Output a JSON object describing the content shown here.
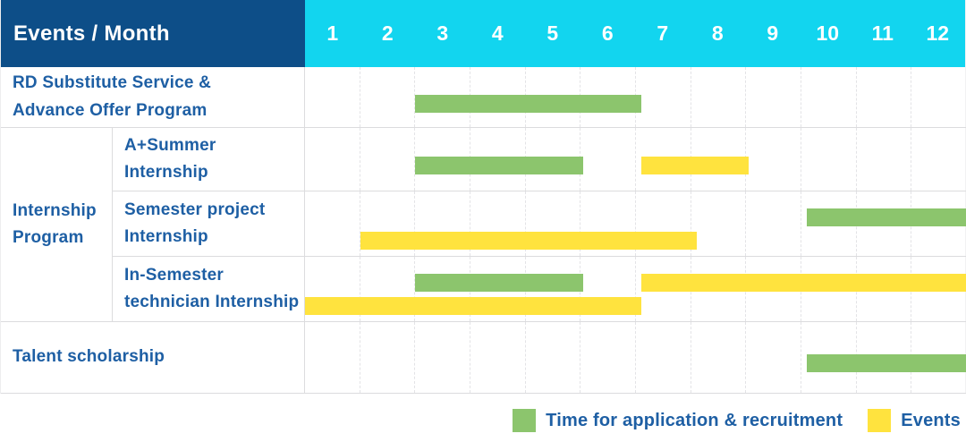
{
  "header": {
    "title": "Events / Month",
    "months": [
      "1",
      "2",
      "3",
      "4",
      "5",
      "6",
      "7",
      "8",
      "9",
      "10",
      "11",
      "12"
    ]
  },
  "rows": {
    "rd": {
      "label": "RD Substitute Service &\nAdvance Offer Program"
    },
    "group": {
      "label": "Internship\nProgram"
    },
    "a_summer": {
      "label": "A+Summer\nInternship"
    },
    "semester": {
      "label": "Semester project\nInternship"
    },
    "in_semester": {
      "label": "In-Semester\ntechnician Internship"
    },
    "talent": {
      "label": "Talent scholarship"
    }
  },
  "legend": {
    "recruitment": {
      "label": "Time for application & recruitment"
    },
    "events": {
      "label": "Events"
    }
  },
  "colors": {
    "header_bg": "#0d4e88",
    "months_bg": "#12d5ef",
    "bar_green": "#8cc56d",
    "bar_yellow": "#ffe33e",
    "label_text": "#1e5fa4",
    "header_text": "#ffffff",
    "grid_line": "#e3e3e6",
    "row_line": "#dcdcde"
  },
  "chart_data": {
    "type": "gantt",
    "title": "Events / Month",
    "x_axis": {
      "unit": "month",
      "min": 0,
      "max": 12,
      "ticks": [
        1,
        2,
        3,
        4,
        5,
        6,
        7,
        8,
        9,
        10,
        11,
        12
      ]
    },
    "legend_entries": [
      {
        "kind": "recruitment",
        "label": "Time for application & recruitment",
        "color": "#8cc56d"
      },
      {
        "kind": "event",
        "label": "Events",
        "color": "#ffe33e"
      }
    ],
    "rows": [
      {
        "name": "RD Substitute Service & Advance Offer Program",
        "bars": [
          {
            "kind": "recruitment",
            "start": 2.0,
            "end": 6.1,
            "lane": "single"
          }
        ]
      },
      {
        "name": "A+Summer Internship",
        "group": "Internship Program",
        "bars": [
          {
            "kind": "recruitment",
            "start": 2.0,
            "end": 5.05,
            "lane": "single"
          },
          {
            "kind": "event",
            "start": 6.1,
            "end": 8.05,
            "lane": "single"
          }
        ]
      },
      {
        "name": "Semester project Internship",
        "group": "Internship Program",
        "bars": [
          {
            "kind": "recruitment",
            "start": 9.1,
            "end": 12,
            "lane": "upper"
          },
          {
            "kind": "event",
            "start": 1.0,
            "end": 7.1,
            "lane": "lower"
          }
        ]
      },
      {
        "name": "In-Semester technician Internship",
        "group": "Internship Program",
        "bars": [
          {
            "kind": "recruitment",
            "start": 2.0,
            "end": 5.05,
            "lane": "upper"
          },
          {
            "kind": "event",
            "start": 6.1,
            "end": 12,
            "lane": "upper"
          },
          {
            "kind": "event",
            "start": 0,
            "end": 6.1,
            "lane": "lower"
          }
        ]
      },
      {
        "name": "Talent scholarship",
        "bars": [
          {
            "kind": "recruitment",
            "start": 9.1,
            "end": 12,
            "lane": "single"
          }
        ]
      }
    ]
  }
}
